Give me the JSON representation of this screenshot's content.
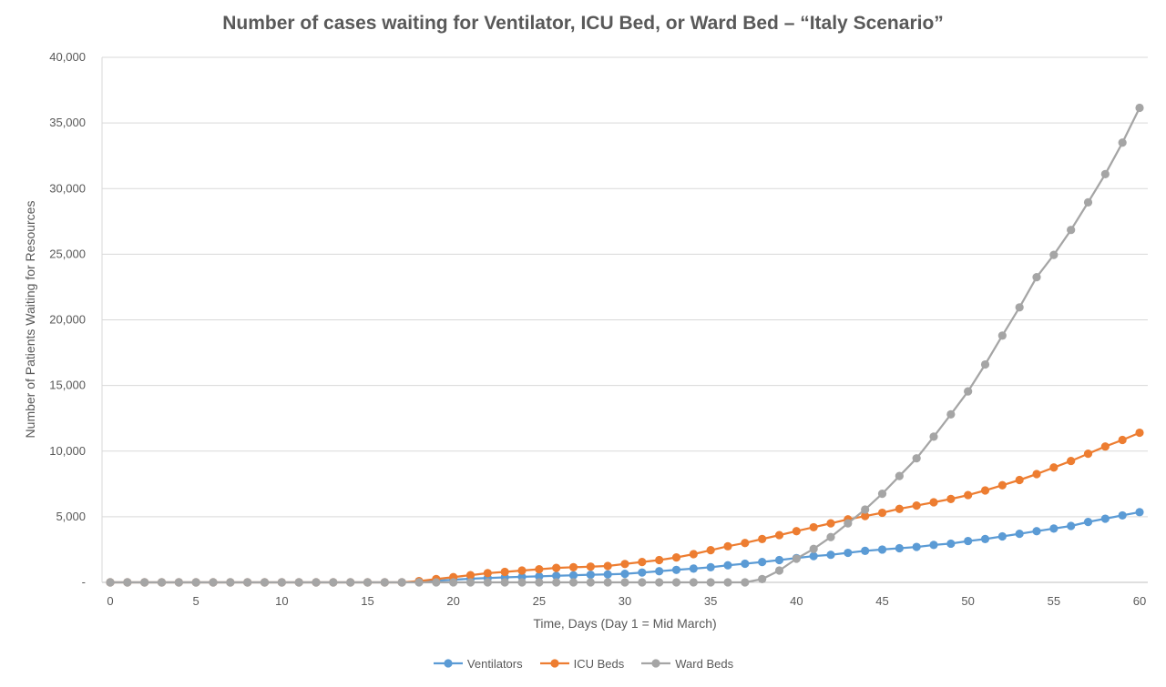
{
  "chart_data": {
    "type": "line",
    "title": "Number of cases waiting for Ventilator, ICU Bed, or Ward Bed – “Italy Scenario”",
    "xlabel": "Time, Days (Day 1 = Mid March)",
    "ylabel": "Number of Patients Waiting for Resources",
    "xlim": [
      0,
      60
    ],
    "ylim": [
      0,
      40000
    ],
    "x_ticks": [
      0,
      5,
      10,
      15,
      20,
      25,
      30,
      35,
      40,
      45,
      50,
      55,
      60
    ],
    "x_tick_labels": [
      "0",
      "5",
      "10",
      "15",
      "20",
      "25",
      "30",
      "35",
      "40",
      "45",
      "50",
      "55",
      "60"
    ],
    "y_ticks": [
      0,
      5000,
      10000,
      15000,
      20000,
      25000,
      30000,
      35000,
      40000
    ],
    "y_tick_labels": [
      "-",
      "5,000",
      "10,000",
      "15,000",
      "20,000",
      "25,000",
      "30,000",
      "35,000",
      "40,000"
    ],
    "grid": true,
    "legend_position": "bottom",
    "x": [
      0,
      1,
      2,
      3,
      4,
      5,
      6,
      7,
      8,
      9,
      10,
      11,
      12,
      13,
      14,
      15,
      16,
      17,
      18,
      19,
      20,
      21,
      22,
      23,
      24,
      25,
      26,
      27,
      28,
      29,
      30,
      31,
      32,
      33,
      34,
      35,
      36,
      37,
      38,
      39,
      40,
      41,
      42,
      43,
      44,
      45,
      46,
      47,
      48,
      49,
      50,
      51,
      52,
      53,
      54,
      55,
      56,
      57,
      58,
      59,
      60
    ],
    "series": [
      {
        "name": "Ventilators",
        "color": "#5B9BD5",
        "values": [
          0,
          0,
          0,
          0,
          0,
          0,
          0,
          0,
          0,
          0,
          0,
          0,
          0,
          0,
          0,
          0,
          0,
          0,
          50,
          120,
          200,
          280,
          330,
          380,
          420,
          460,
          500,
          540,
          580,
          610,
          650,
          750,
          850,
          950,
          1050,
          1150,
          1300,
          1420,
          1550,
          1700,
          1850,
          2000,
          2100,
          2250,
          2400,
          2500,
          2600,
          2700,
          2850,
          2950,
          3150,
          3300,
          3500,
          3700,
          3900,
          4100,
          4300,
          4600,
          4850,
          5100,
          5350
        ]
      },
      {
        "name": "ICU Beds",
        "color": "#ED7D31",
        "values": [
          0,
          0,
          0,
          0,
          0,
          0,
          0,
          0,
          0,
          0,
          0,
          0,
          0,
          0,
          0,
          0,
          0,
          0,
          100,
          250,
          400,
          550,
          700,
          800,
          900,
          1000,
          1100,
          1150,
          1200,
          1250,
          1400,
          1550,
          1700,
          1900,
          2150,
          2450,
          2750,
          3000,
          3300,
          3600,
          3900,
          4200,
          4500,
          4800,
          5050,
          5300,
          5600,
          5850,
          6100,
          6350,
          6650,
          7000,
          7400,
          7800,
          8250,
          8750,
          9250,
          9800,
          10350,
          10850,
          11400
        ]
      },
      {
        "name": "Ward Beds",
        "color": "#A5A5A5",
        "values": [
          0,
          0,
          0,
          0,
          0,
          0,
          0,
          0,
          0,
          0,
          0,
          0,
          0,
          0,
          0,
          0,
          0,
          0,
          0,
          0,
          0,
          0,
          0,
          0,
          0,
          0,
          0,
          0,
          0,
          0,
          0,
          0,
          0,
          0,
          0,
          0,
          0,
          0,
          250,
          900,
          1800,
          2550,
          3450,
          4500,
          5550,
          6750,
          8100,
          9450,
          11100,
          12800,
          14550,
          16600,
          18800,
          20950,
          23250,
          24950,
          26850,
          28950,
          31100,
          33500,
          36150
        ]
      }
    ]
  }
}
